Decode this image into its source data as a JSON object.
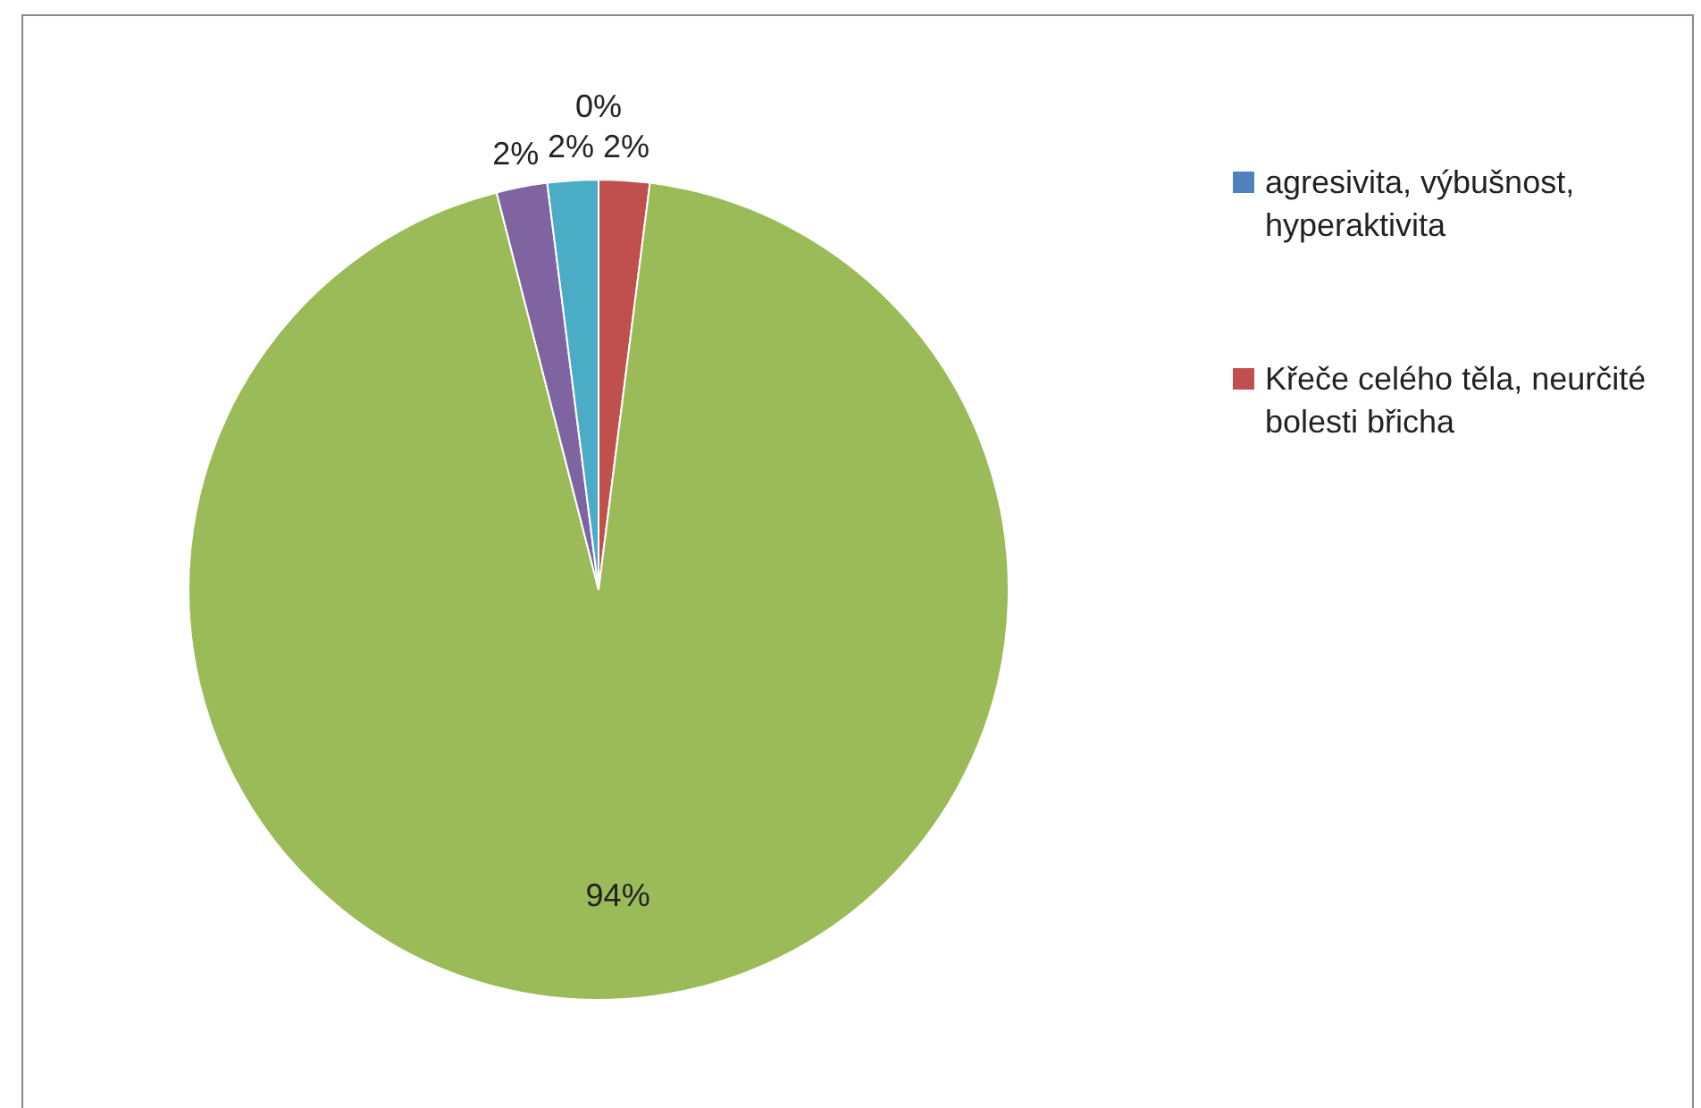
{
  "chart_data": {
    "type": "pie",
    "categories": [
      "agresivita, výbušnost, hyperaktivita",
      "Křeče celého těla, neurčité bolesti břicha",
      null,
      null,
      null
    ],
    "values": [
      0,
      2,
      94,
      2,
      2
    ],
    "value_labels": [
      "0%",
      "2%",
      "94%",
      "2%",
      "2%"
    ],
    "colors": [
      "#4f81bd",
      "#c0504d",
      "#9bbb59",
      "#8064a2",
      "#4bacc6"
    ],
    "legend": "right"
  }
}
